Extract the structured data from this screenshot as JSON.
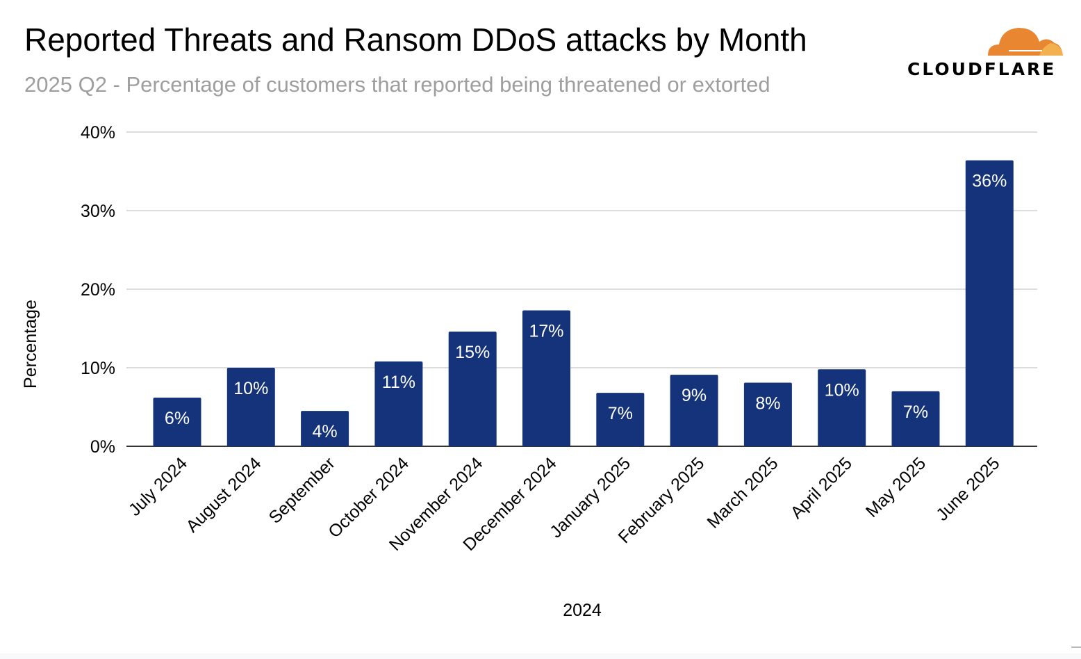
{
  "header": {
    "title": "Reported Threats and Ransom DDoS attacks by Month",
    "subtitle": "2025 Q2 - Percentage of customers that reported being threatened or extorted",
    "logo_text": "CLOUDFLARE"
  },
  "colors": {
    "bar": "#15337a",
    "grid": "#d0d0d0",
    "logo_orange": "#e98631",
    "logo_light": "#f2b04f"
  },
  "chart_data": {
    "type": "bar",
    "title": "Reported Threats and Ransom DDoS attacks by Month",
    "xlabel": "2024",
    "ylabel": "Percentage",
    "ylim": [
      0,
      40
    ],
    "yticks": [
      0,
      10,
      20,
      30,
      40
    ],
    "ytick_labels": [
      "0%",
      "10%",
      "20%",
      "30%",
      "40%"
    ],
    "grid": true,
    "categories": [
      "July 2024",
      "August 2024",
      "September",
      "October 2024",
      "November 2024",
      "December 2024",
      "January 2025",
      "February 2025",
      "March 2025",
      "April 2025",
      "May 2025",
      "June 2025"
    ],
    "values": [
      6.2,
      10.0,
      4.5,
      10.8,
      14.6,
      17.3,
      6.8,
      9.1,
      8.1,
      9.8,
      7.0,
      36.4
    ],
    "data_labels": [
      "6%",
      "10%",
      "4%",
      "11%",
      "15%",
      "17%",
      "7%",
      "9%",
      "8%",
      "10%",
      "7%",
      "36%"
    ]
  }
}
